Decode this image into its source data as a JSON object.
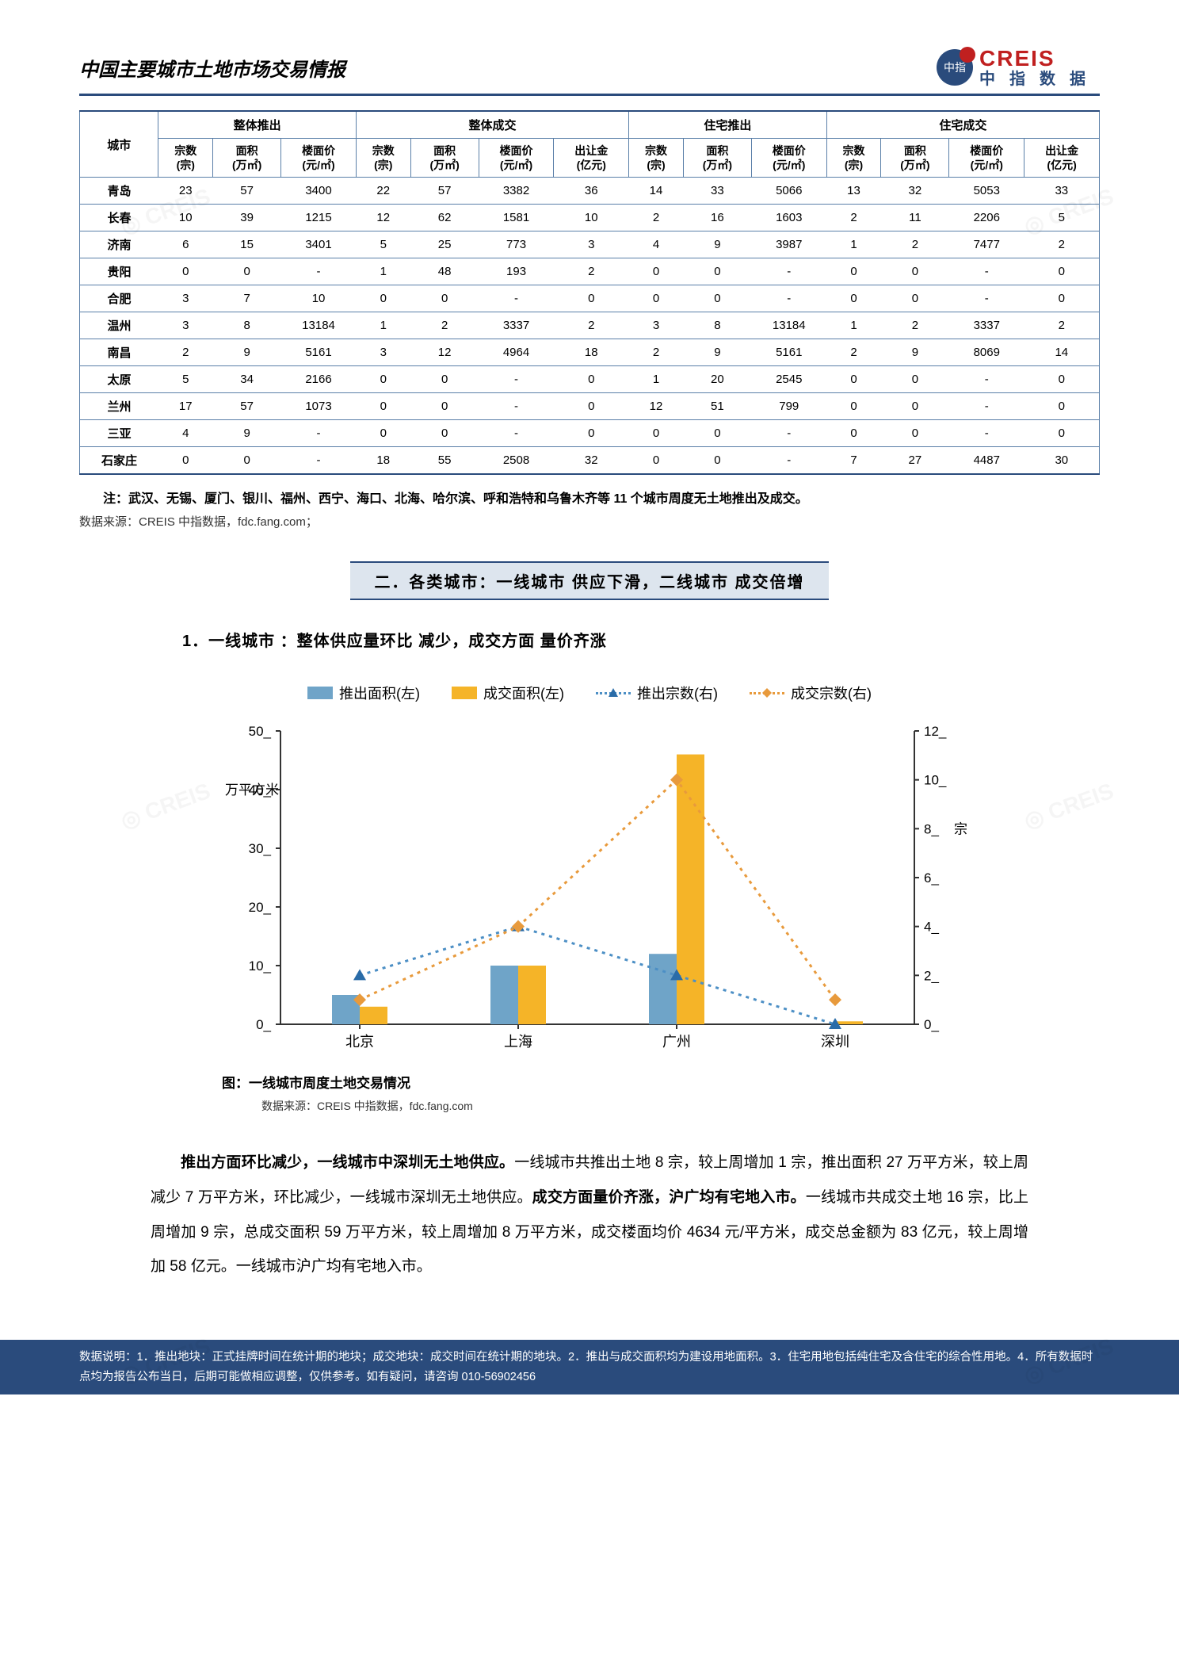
{
  "header": {
    "title": "中国主要城市土地市场交易情报",
    "logo_top": "CREIS",
    "logo_bot": "中指数据",
    "logo_badge": "中指"
  },
  "table": {
    "group_headers": [
      "整体推出",
      "整体成交",
      "住宅推出",
      "住宅成交"
    ],
    "city_label": "城市",
    "sub_headers_a": [
      "宗数\n(宗)",
      "面积\n(万㎡)",
      "楼面价\n(元/㎡)"
    ],
    "sub_headers_b": [
      "宗数\n(宗)",
      "面积\n(万㎡)",
      "楼面价\n(元/㎡)",
      "出让金\n(亿元)"
    ],
    "rows": [
      [
        "青岛",
        "23",
        "57",
        "3400",
        "22",
        "57",
        "3382",
        "36",
        "14",
        "33",
        "5066",
        "13",
        "32",
        "5053",
        "33"
      ],
      [
        "长春",
        "10",
        "39",
        "1215",
        "12",
        "62",
        "1581",
        "10",
        "2",
        "16",
        "1603",
        "2",
        "11",
        "2206",
        "5"
      ],
      [
        "济南",
        "6",
        "15",
        "3401",
        "5",
        "25",
        "773",
        "3",
        "4",
        "9",
        "3987",
        "1",
        "2",
        "7477",
        "2"
      ],
      [
        "贵阳",
        "0",
        "0",
        "-",
        "1",
        "48",
        "193",
        "2",
        "0",
        "0",
        "-",
        "0",
        "0",
        "-",
        "0"
      ],
      [
        "合肥",
        "3",
        "7",
        "10",
        "0",
        "0",
        "-",
        "0",
        "0",
        "0",
        "-",
        "0",
        "0",
        "-",
        "0"
      ],
      [
        "温州",
        "3",
        "8",
        "13184",
        "1",
        "2",
        "3337",
        "2",
        "3",
        "8",
        "13184",
        "1",
        "2",
        "3337",
        "2"
      ],
      [
        "南昌",
        "2",
        "9",
        "5161",
        "3",
        "12",
        "4964",
        "18",
        "2",
        "9",
        "5161",
        "2",
        "9",
        "8069",
        "14"
      ],
      [
        "太原",
        "5",
        "34",
        "2166",
        "0",
        "0",
        "-",
        "0",
        "1",
        "20",
        "2545",
        "0",
        "0",
        "-",
        "0"
      ],
      [
        "兰州",
        "17",
        "57",
        "1073",
        "0",
        "0",
        "-",
        "0",
        "12",
        "51",
        "799",
        "0",
        "0",
        "-",
        "0"
      ],
      [
        "三亚",
        "4",
        "9",
        "-",
        "0",
        "0",
        "-",
        "0",
        "0",
        "0",
        "-",
        "0",
        "0",
        "-",
        "0"
      ],
      [
        "石家庄",
        "0",
        "0",
        "-",
        "18",
        "55",
        "2508",
        "32",
        "0",
        "0",
        "-",
        "7",
        "27",
        "4487",
        "30"
      ]
    ]
  },
  "notes": {
    "table_note": "注：武汉、无锡、厦门、银川、福州、西宁、海口、北海、哈尔滨、呼和浩特和乌鲁木齐等 11 个城市周度无土地推出及成交。",
    "source1": "数据来源：CREIS 中指数据，fdc.fang.com；"
  },
  "section": {
    "title": "二．各类城市：一线城市 供应下滑，二线城市 成交倍增",
    "sub": "1．一线城市 ：整体供应量环比 减少，成交方面 量价齐涨"
  },
  "chart": {
    "type": "bar+line-dual-axis",
    "legend": [
      "推出面积(左)",
      "成交面积(左)",
      "推出宗数(右)",
      "成交宗数(右)"
    ],
    "categories": [
      "北京",
      "上海",
      "广州",
      "深圳"
    ],
    "bar1_values": [
      5,
      10,
      12,
      0
    ],
    "bar2_values": [
      3,
      10,
      46,
      0.5
    ],
    "line1_values": [
      2,
      4,
      2,
      0
    ],
    "line2_values": [
      1,
      4,
      10,
      1
    ],
    "colors": {
      "bar1": "#6fa4c8",
      "bar2": "#f5b428",
      "line1": "#4c8fc5",
      "line2": "#e89a3c",
      "marker1": "#2a6ca8",
      "marker2": "#e89a3c",
      "axis": "#333333",
      "background": "#ffffff"
    },
    "left_axis": {
      "label": "万平方米",
      "min": 0,
      "max": 50,
      "step": 10,
      "fontsize": 17
    },
    "right_axis": {
      "label": "宗",
      "min": 0,
      "max": 12,
      "step": 2,
      "fontsize": 17
    },
    "bar_width": 0.35,
    "line_style": "dotted",
    "marker1_shape": "triangle",
    "marker2_shape": "diamond",
    "caption": "图：一线城市周度土地交易情况",
    "source": "数据来源：CREIS 中指数据，fdc.fang.com"
  },
  "body": {
    "p1_bold1": "推出方面环比减少，一线城市中深圳无土地供应。",
    "p1_text1": "一线城市共推出土地 8 宗，较上周增加 1 宗，推出面积 27 万平方米，较上周减少 7 万平方米，环比减少，一线城市深圳无土地供应。",
    "p1_bold2": "成交方面量价齐涨，沪广均有宅地入市。",
    "p1_text2": "一线城市共成交土地 16 宗，比上周增加 9 宗，总成交面积 59 万平方米，较上周增加 8 万平方米，成交楼面均价 4634 元/平方米，成交总金额为 83 亿元，较上周增加 58 亿元。一线城市沪广均有宅地入市。"
  },
  "footer": {
    "text": "数据说明：1．推出地块：正式挂牌时间在统计期的地块；成交地块：成交时间在统计期的地块。2．推出与成交面积均为建设用地面积。3．住宅用地包括纯住宅及含住宅的综合性用地。4．所有数据时点均为报告公布当日，后期可能做相应调整，仅供参考。如有疑问，请咨询 010-56902456"
  }
}
